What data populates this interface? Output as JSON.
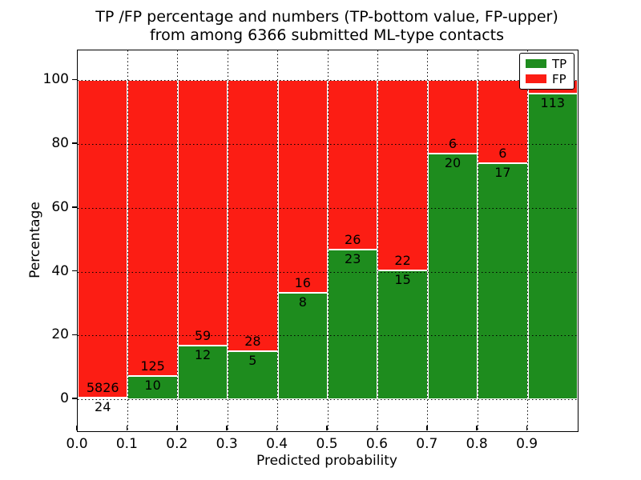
{
  "title": {
    "line1": "TP /FP percentage and numbers (TP-bottom value, FP-upper)",
    "line2": "from among 6366 submitted ML-type contacts"
  },
  "axes": {
    "xlabel": "Predicted probability",
    "ylabel": "Percentage",
    "x_tick_labels": [
      "0.0",
      "0.1",
      "0.2",
      "0.3",
      "0.4",
      "0.5",
      "0.6",
      "0.7",
      "0.8",
      "0.9"
    ],
    "y_tick_labels": [
      "0",
      "20",
      "40",
      "60",
      "80",
      "100"
    ],
    "y_tick_values": [
      0,
      20,
      40,
      60,
      80,
      100
    ],
    "xlim": [
      0.0,
      1.0
    ],
    "ylim": [
      -10,
      109.4
    ],
    "grid": "dotted"
  },
  "legend": {
    "position": "upper right",
    "entries": [
      {
        "label": "TP",
        "color": "#1e8c1e"
      },
      {
        "label": "FP",
        "color": "#fc1d14"
      }
    ]
  },
  "colors": {
    "tp": "#1e8c1e",
    "fp": "#fc1d14",
    "label_text": "#000000"
  },
  "chart_data": {
    "type": "bar",
    "stacked": true,
    "normalized_to": 100,
    "title": "TP /FP percentage and numbers (TP-bottom value, FP-upper) from among 6366 submitted ML-type contacts",
    "total_contacts": 6366,
    "xlabel": "Predicted probability",
    "ylabel": "Percentage",
    "bin_width": 0.1,
    "bins": [
      {
        "x_start": 0.0,
        "x_end": 0.1,
        "tp": 24,
        "fp": 5826,
        "tp_pct": 0.41,
        "fp_label_visible": true
      },
      {
        "x_start": 0.1,
        "x_end": 0.2,
        "tp": 10,
        "fp": 125,
        "tp_pct": 7.41,
        "fp_label_visible": true
      },
      {
        "x_start": 0.2,
        "x_end": 0.3,
        "tp": 12,
        "fp": 59,
        "tp_pct": 16.9,
        "fp_label_visible": true
      },
      {
        "x_start": 0.3,
        "x_end": 0.4,
        "tp": 5,
        "fp": 28,
        "tp_pct": 15.15,
        "fp_label_visible": true
      },
      {
        "x_start": 0.4,
        "x_end": 0.5,
        "tp": 8,
        "fp": 16,
        "tp_pct": 33.33,
        "fp_label_visible": true
      },
      {
        "x_start": 0.5,
        "x_end": 0.6,
        "tp": 23,
        "fp": 26,
        "tp_pct": 46.94,
        "fp_label_visible": true
      },
      {
        "x_start": 0.6,
        "x_end": 0.7,
        "tp": 15,
        "fp": 22,
        "tp_pct": 40.54,
        "fp_label_visible": true
      },
      {
        "x_start": 0.7,
        "x_end": 0.8,
        "tp": 20,
        "fp": 6,
        "tp_pct": 76.92,
        "fp_label_visible": true
      },
      {
        "x_start": 0.8,
        "x_end": 0.9,
        "tp": 17,
        "fp": 6,
        "tp_pct": 73.91,
        "fp_label_visible": true
      },
      {
        "x_start": 0.9,
        "x_end": 1.0,
        "tp": 113,
        "fp": 5,
        "tp_pct": 95.76,
        "fp_label_visible": false
      }
    ],
    "series": [
      {
        "name": "TP",
        "values": [
          24,
          10,
          12,
          5,
          8,
          23,
          15,
          20,
          17,
          113
        ]
      },
      {
        "name": "FP",
        "values": [
          5826,
          125,
          59,
          28,
          16,
          26,
          22,
          6,
          6,
          5
        ]
      }
    ]
  }
}
